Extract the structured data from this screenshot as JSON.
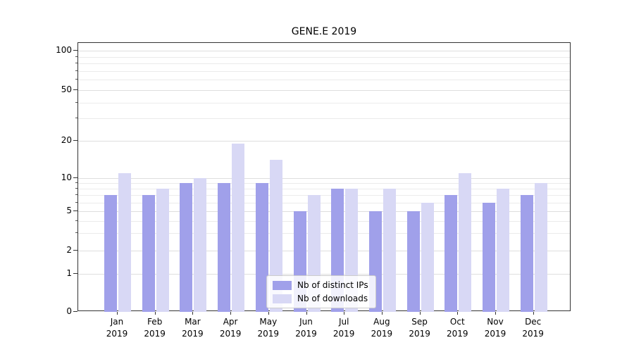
{
  "chart_data": {
    "type": "bar",
    "title": "GENE.E 2019",
    "categories": [
      "Jan",
      "Feb",
      "Mar",
      "Apr",
      "May",
      "Jun",
      "Jul",
      "Aug",
      "Sep",
      "Oct",
      "Nov",
      "Dec"
    ],
    "year": "2019",
    "series": [
      {
        "name": "Nb of distinct IPs",
        "color": "#a0a0ea",
        "values": [
          7,
          7,
          9,
          9,
          9,
          5,
          8,
          5,
          5,
          7,
          6,
          7
        ]
      },
      {
        "name": "Nb of downloads",
        "color": "#d8d8f5",
        "values": [
          11,
          8,
          10,
          19,
          14,
          7,
          8,
          8,
          6,
          11,
          8,
          9
        ]
      }
    ],
    "xlabel": "",
    "ylabel": "",
    "y_axis": {
      "scale": "symlog-like",
      "ticks": [
        0,
        1,
        2,
        5,
        10,
        20,
        50,
        100
      ],
      "minor_gridlines": [
        3,
        4,
        6,
        7,
        8,
        9,
        30,
        40,
        60,
        70,
        80,
        90
      ],
      "ylim": [
        0,
        115
      ]
    },
    "grid": true,
    "legend": {
      "position": "lower center",
      "entries": [
        "Nb of distinct IPs",
        "Nb of downloads"
      ]
    }
  }
}
